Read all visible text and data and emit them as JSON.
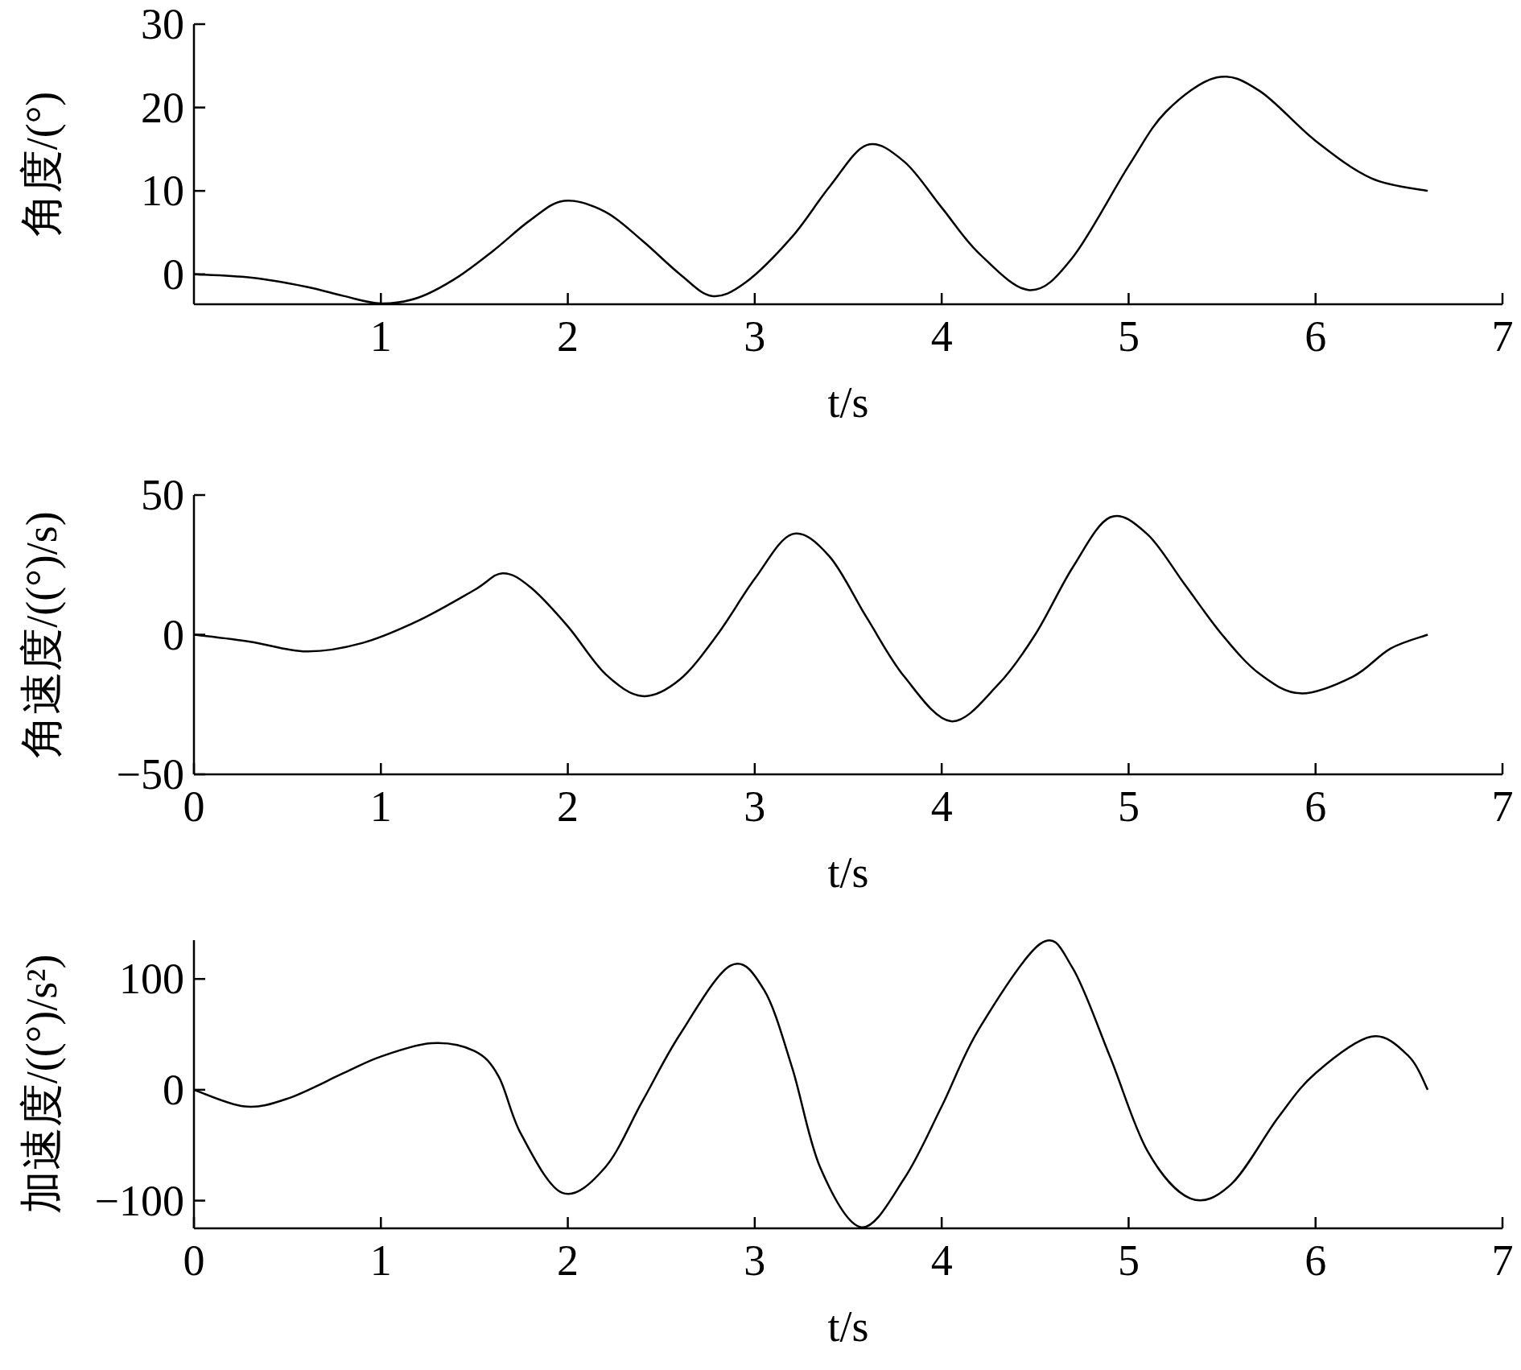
{
  "chart_data": [
    {
      "type": "line",
      "ylabel": "角度/(°)",
      "xlabel": "t/s",
      "xlim": [
        0,
        7
      ],
      "ylim": [
        -3.6,
        30
      ],
      "xticks": [
        1,
        2,
        3,
        4,
        5,
        6,
        7
      ],
      "yticks": [
        0,
        10,
        20,
        30
      ],
      "grid": false,
      "marker": "none",
      "line_style": "solid",
      "x": [
        0,
        0.3,
        0.6,
        0.8,
        1.0,
        1.2,
        1.4,
        1.6,
        1.8,
        1.98,
        2.2,
        2.4,
        2.6,
        2.77,
        2.95,
        3.2,
        3.4,
        3.6,
        3.8,
        4.0,
        4.2,
        4.47,
        4.7,
        5.0,
        5.2,
        5.47,
        5.7,
        6.0,
        6.3,
        6.6
      ],
      "series": [
        {
          "color": "#000000",
          "values": [
            0,
            -0.4,
            -1.5,
            -2.6,
            -3.5,
            -2.8,
            -0.5,
            2.8,
            6.5,
            8.8,
            7.5,
            4,
            0,
            -2.6,
            -1,
            4.5,
            10.5,
            15.5,
            13.5,
            8,
            2.5,
            -1.9,
            2,
            13,
            19.5,
            23.6,
            22,
            16,
            11.5,
            10
          ]
        }
      ]
    },
    {
      "type": "line",
      "ylabel": "角速度/((°)/s)",
      "xlabel": "t/s",
      "xlim": [
        0,
        7
      ],
      "ylim": [
        -50,
        50
      ],
      "xticks": [
        0,
        1,
        2,
        3,
        4,
        5,
        6,
        7
      ],
      "yticks": [
        -50,
        0,
        50
      ],
      "grid": false,
      "marker": "none",
      "line_style": "solid",
      "x": [
        0,
        0.3,
        0.6,
        0.9,
        1.2,
        1.5,
        1.65,
        1.8,
        2.0,
        2.2,
        2.4,
        2.6,
        2.8,
        3.0,
        3.2,
        3.4,
        3.6,
        3.8,
        4.05,
        4.3,
        4.5,
        4.7,
        4.9,
        5.1,
        5.3,
        5.5,
        5.7,
        5.92,
        6.2,
        6.4,
        6.6
      ],
      "series": [
        {
          "color": "#000000",
          "values": [
            0,
            -2.5,
            -6,
            -3,
            5,
            16,
            22,
            17,
            3,
            -14,
            -22,
            -16,
            0,
            20,
            36,
            28,
            6,
            -15,
            -31,
            -18,
            0,
            24,
            42,
            36,
            18,
            0,
            -14,
            -21,
            -15,
            -5,
            0
          ]
        }
      ]
    },
    {
      "type": "line",
      "ylabel": "加速度/((°)/s²)",
      "xlabel": "t/s",
      "xlim": [
        0,
        7
      ],
      "ylim": [
        -125,
        135
      ],
      "xticks": [
        0,
        1,
        2,
        3,
        4,
        5,
        6,
        7
      ],
      "yticks": [
        -100,
        0,
        100
      ],
      "grid": false,
      "marker": "none",
      "line_style": "solid",
      "x": [
        0,
        0.27,
        0.5,
        0.8,
        1.0,
        1.27,
        1.5,
        1.63,
        1.75,
        1.97,
        2.2,
        2.4,
        2.6,
        2.87,
        3.05,
        3.2,
        3.35,
        3.57,
        3.8,
        4.0,
        4.2,
        4.53,
        4.7,
        4.9,
        5.1,
        5.33,
        5.55,
        5.8,
        6.0,
        6.3,
        6.5,
        6.6
      ],
      "series": [
        {
          "color": "#000000",
          "values": [
            0,
            -15,
            -8,
            15,
            30,
            42,
            35,
            12,
            -40,
            -93,
            -70,
            -10,
            50,
            112,
            90,
            20,
            -70,
            -124,
            -80,
            -15,
            55,
            132,
            110,
            30,
            -55,
            -98,
            -85,
            -25,
            15,
            48,
            30,
            0
          ]
        }
      ]
    }
  ]
}
